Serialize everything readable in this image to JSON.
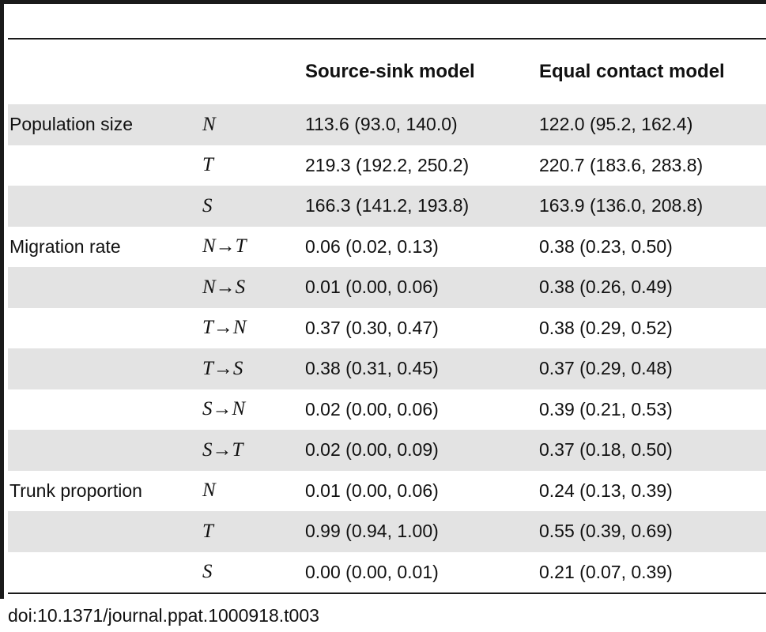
{
  "table": {
    "headers": [
      "",
      "",
      "Source-sink model",
      "Equal contact model"
    ],
    "rows": [
      {
        "group": "Population size",
        "param": "N",
        "source_sink": "113.6 (93.0, 140.0)",
        "equal_contact": "122.0 (95.2, 162.4)",
        "shaded": true
      },
      {
        "group": "",
        "param": "T",
        "source_sink": "219.3 (192.2, 250.2)",
        "equal_contact": "220.7 (183.6, 283.8)",
        "shaded": false
      },
      {
        "group": "",
        "param": "S",
        "source_sink": "166.3 (141.2, 193.8)",
        "equal_contact": "163.9 (136.0, 208.8)",
        "shaded": true
      },
      {
        "group": "Migration rate",
        "param": "N→T",
        "source_sink": "0.06 (0.02, 0.13)",
        "equal_contact": "0.38 (0.23, 0.50)",
        "shaded": false
      },
      {
        "group": "",
        "param": "N→S",
        "source_sink": "0.01 (0.00, 0.06)",
        "equal_contact": "0.38 (0.26, 0.49)",
        "shaded": true
      },
      {
        "group": "",
        "param": "T→N",
        "source_sink": "0.37 (0.30, 0.47)",
        "equal_contact": "0.38 (0.29, 0.52)",
        "shaded": false
      },
      {
        "group": "",
        "param": "T→S",
        "source_sink": "0.38 (0.31, 0.45)",
        "equal_contact": "0.37 (0.29, 0.48)",
        "shaded": true
      },
      {
        "group": "",
        "param": "S→N",
        "source_sink": "0.02 (0.00, 0.06)",
        "equal_contact": "0.39 (0.21, 0.53)",
        "shaded": false
      },
      {
        "group": "",
        "param": "S→T",
        "source_sink": "0.02 (0.00, 0.09)",
        "equal_contact": "0.37 (0.18, 0.50)",
        "shaded": true
      },
      {
        "group": "Trunk proportion",
        "param": "N",
        "source_sink": "0.01 (0.00, 0.06)",
        "equal_contact": "0.24 (0.13, 0.39)",
        "shaded": false
      },
      {
        "group": "",
        "param": "T",
        "source_sink": "0.99 (0.94, 1.00)",
        "equal_contact": "0.55 (0.39, 0.69)",
        "shaded": true
      },
      {
        "group": "",
        "param": "S",
        "source_sink": "0.00 (0.00, 0.01)",
        "equal_contact": "0.21 (0.07, 0.39)",
        "shaded": false
      }
    ]
  },
  "doi": "doi:10.1371/journal.ppat.1000918.t003",
  "colors": {
    "row_shade": "#e3e3e3",
    "rule": "#1a1a1a",
    "text": "#111111"
  }
}
